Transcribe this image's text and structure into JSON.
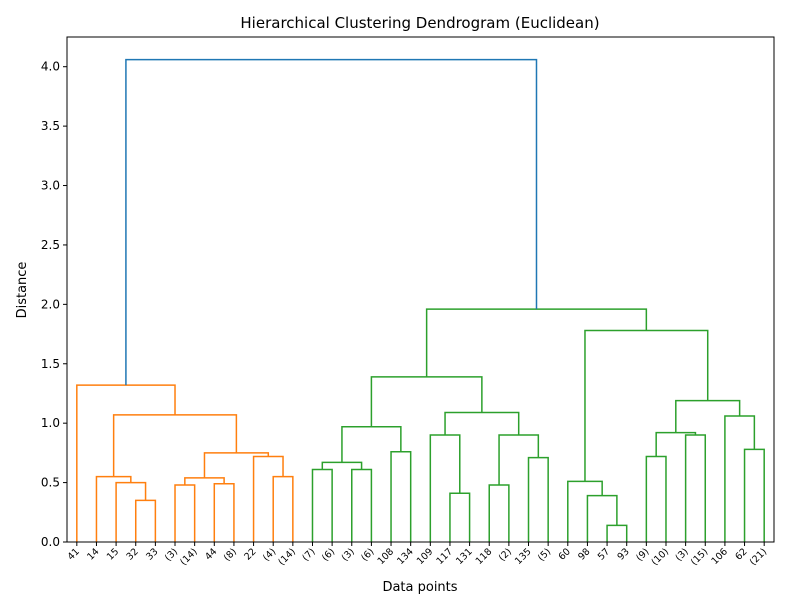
{
  "chart_data": {
    "type": "dendrogram",
    "title": "Hierarchical Clustering Dendrogram (Euclidean)",
    "xlabel": "Data points",
    "ylabel": "Distance",
    "ylim": [
      0,
      4.25
    ],
    "yticks": [
      0.0,
      0.5,
      1.0,
      1.5,
      2.0,
      2.5,
      3.0,
      3.5,
      4.0
    ],
    "ytick_labels": [
      "0.0",
      "0.5",
      "1.0",
      "1.5",
      "2.0",
      "2.5",
      "3.0",
      "3.5",
      "4.0"
    ],
    "grid": false,
    "leaf_labels": [
      "41",
      "14",
      "15",
      "32",
      "33",
      "(3)",
      "(14)",
      "44",
      "(8)",
      "22",
      "(4)",
      "(14)",
      "(7)",
      "(6)",
      "(3)",
      "(6)",
      "108",
      "134",
      "109",
      "117",
      "131",
      "118",
      "(2)",
      "135",
      "(5)",
      "60",
      "98",
      "57",
      "93",
      "(9)",
      "(10)",
      "(3)",
      "(15)",
      "106",
      "62",
      "(21)"
    ],
    "colors": {
      "left_cluster": "#ff7f0e",
      "right_cluster": "#2ca02c",
      "root": "#1f77b4"
    },
    "merges": [
      {
        "a": 3,
        "b": 4,
        "h": 0.35,
        "color": "left"
      },
      {
        "a": 2,
        "b": "m0",
        "h": 0.5,
        "color": "left"
      },
      {
        "a": 1,
        "b": "m1",
        "h": 0.55,
        "color": "left"
      },
      {
        "a": 5,
        "b": 6,
        "h": 0.48,
        "color": "left"
      },
      {
        "a": 7,
        "b": 8,
        "h": 0.49,
        "color": "left"
      },
      {
        "a": "m3",
        "b": "m4",
        "h": 0.54,
        "color": "left"
      },
      {
        "a": 10,
        "b": 11,
        "h": 0.55,
        "color": "left"
      },
      {
        "a": 9,
        "b": "m6",
        "h": 0.72,
        "color": "left"
      },
      {
        "a": "m5",
        "b": "m7",
        "h": 0.75,
        "color": "left"
      },
      {
        "a": "m2",
        "b": "m8",
        "h": 1.07,
        "color": "left"
      },
      {
        "a": 0,
        "b": "m9",
        "h": 1.32,
        "color": "left"
      },
      {
        "a": 12,
        "b": 13,
        "h": 0.61,
        "color": "right"
      },
      {
        "a": 14,
        "b": 15,
        "h": 0.61,
        "color": "right"
      },
      {
        "a": "m11",
        "b": "m12",
        "h": 0.67,
        "color": "right"
      },
      {
        "a": 16,
        "b": 17,
        "h": 0.76,
        "color": "right"
      },
      {
        "a": "m13",
        "b": "m14",
        "h": 0.97,
        "color": "right"
      },
      {
        "a": 19,
        "b": 20,
        "h": 0.41,
        "color": "right"
      },
      {
        "a": 18,
        "b": "m16",
        "h": 0.9,
        "color": "right"
      },
      {
        "a": 21,
        "b": 22,
        "h": 0.48,
        "color": "right"
      },
      {
        "a": 23,
        "b": 24,
        "h": 0.71,
        "color": "right"
      },
      {
        "a": "m18",
        "b": "m19",
        "h": 0.9,
        "color": "right"
      },
      {
        "a": "m17",
        "b": "m20",
        "h": 1.09,
        "color": "right"
      },
      {
        "a": "m15",
        "b": "m21",
        "h": 1.39,
        "color": "right"
      },
      {
        "a": 27,
        "b": 28,
        "h": 0.14,
        "color": "right"
      },
      {
        "a": 26,
        "b": "m23",
        "h": 0.39,
        "color": "right"
      },
      {
        "a": 25,
        "b": "m24",
        "h": 0.51,
        "color": "right"
      },
      {
        "a": 29,
        "b": 30,
        "h": 0.72,
        "color": "right"
      },
      {
        "a": 31,
        "b": 32,
        "h": 0.9,
        "color": "right"
      },
      {
        "a": "m26",
        "b": "m27",
        "h": 0.92,
        "color": "right"
      },
      {
        "a": 34,
        "b": 35,
        "h": 0.78,
        "color": "right"
      },
      {
        "a": 33,
        "b": "m29",
        "h": 1.06,
        "color": "right"
      },
      {
        "a": "m28",
        "b": "m30",
        "h": 1.19,
        "color": "right"
      },
      {
        "a": "m25",
        "b": "m31",
        "h": 1.78,
        "color": "right"
      },
      {
        "a": "m22",
        "b": "m32",
        "h": 1.96,
        "color": "right"
      },
      {
        "a": "m10",
        "b": "m33",
        "h": 4.06,
        "color": "root"
      }
    ]
  }
}
